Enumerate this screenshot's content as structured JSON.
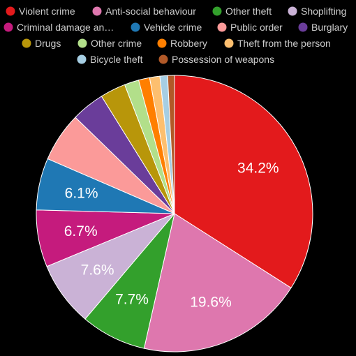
{
  "chart_data": {
    "type": "pie",
    "legend_position": "top",
    "series": [
      {
        "name": "Violent crime",
        "value": 34.2,
        "color": "#e31a1c",
        "label": "34.2%"
      },
      {
        "name": "Anti-social behaviour",
        "value": 19.6,
        "color": "#de77ae",
        "label": "19.6%"
      },
      {
        "name": "Other theft",
        "value": 7.7,
        "color": "#33a02c",
        "label": "7.7%"
      },
      {
        "name": "Shoplifting",
        "value": 7.6,
        "color": "#cab2d6",
        "label": "7.6%"
      },
      {
        "name": "Criminal damage an…",
        "value": 6.7,
        "color": "#c51b7d",
        "label": "6.7%"
      },
      {
        "name": "Vehicle crime",
        "value": 6.1,
        "color": "#1f78b4",
        "label": "6.1%"
      },
      {
        "name": "Public order",
        "value": 5.8,
        "color": "#fb9a99",
        "label": ""
      },
      {
        "name": "Burglary",
        "value": 3.9,
        "color": "#6a3d9a",
        "label": ""
      },
      {
        "name": "Drugs",
        "value": 3.0,
        "color": "#b8960a",
        "label": ""
      },
      {
        "name": "Other crime",
        "value": 1.7,
        "color": "#b2df8a",
        "label": ""
      },
      {
        "name": "Robbery",
        "value": 1.3,
        "color": "#ff7f00",
        "label": ""
      },
      {
        "name": "Theft from the person",
        "value": 1.2,
        "color": "#fdbf6f",
        "label": ""
      },
      {
        "name": "Bicycle theft",
        "value": 0.9,
        "color": "#a6cee3",
        "label": ""
      },
      {
        "name": "Possession of weapons",
        "value": 0.8,
        "color": "#b15928",
        "label": ""
      }
    ]
  }
}
